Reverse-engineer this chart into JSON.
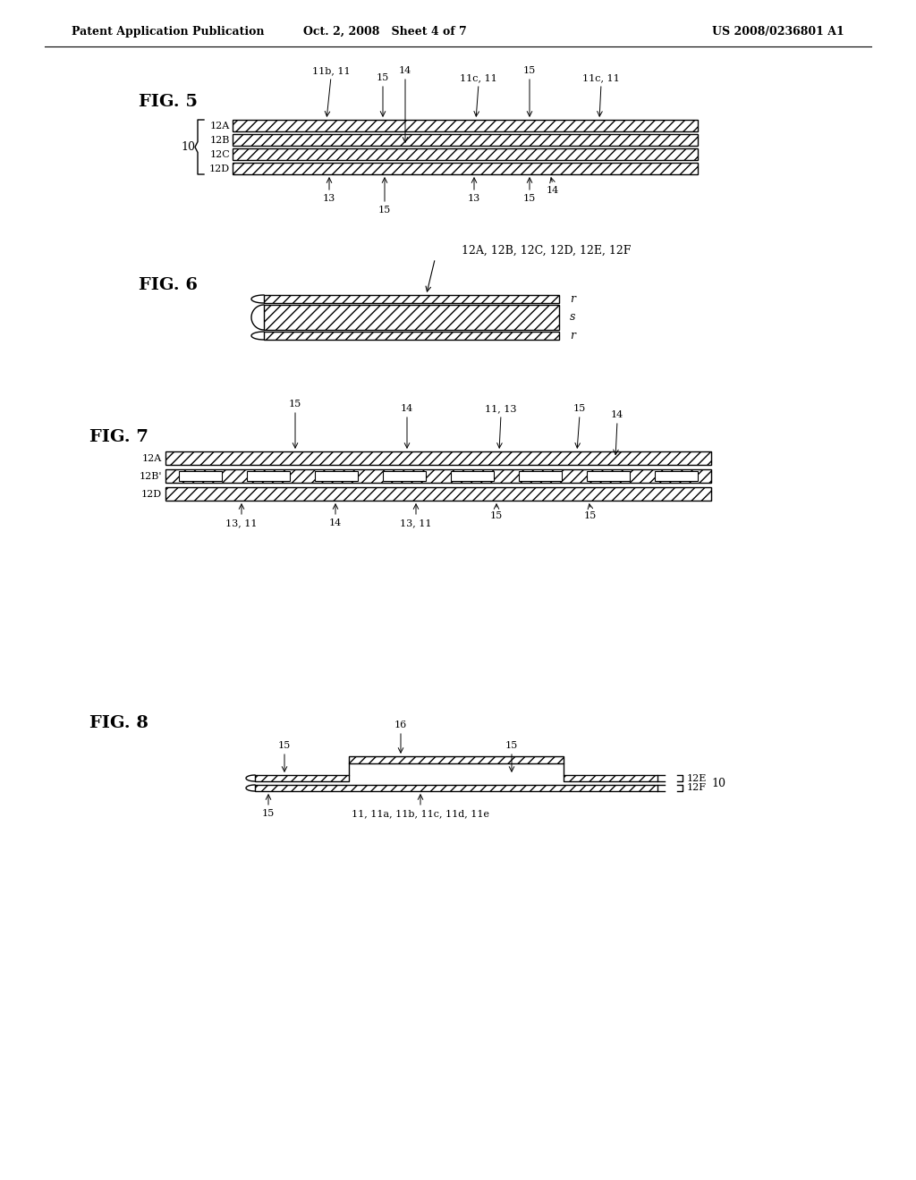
{
  "header_left": "Patent Application Publication",
  "header_mid": "Oct. 2, 2008   Sheet 4 of 7",
  "header_right": "US 2008/0236801 A1",
  "background": "#ffffff",
  "fig5_label": "FIG. 5",
  "fig6_label": "FIG. 6",
  "fig7_label": "FIG. 7",
  "fig8_label": "FIG. 8"
}
